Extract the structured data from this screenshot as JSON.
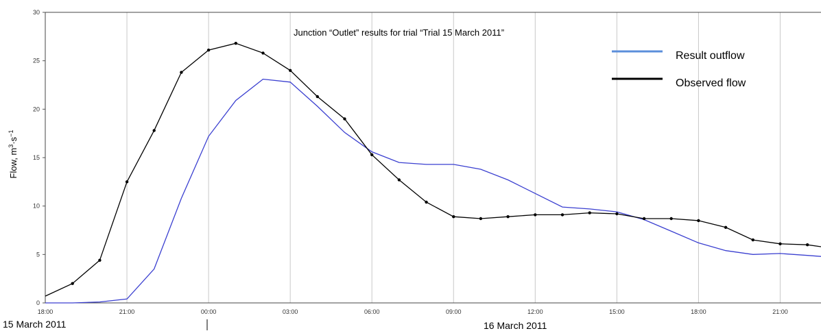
{
  "chart_data": {
    "type": "line",
    "title": "Junction “Outlet” results for trial “Trial 15 March 2011”",
    "ylabel_prefix": "Flow, m",
    "ylabel_sup1": "3",
    "ylabel_mid": "·s",
    "ylabel_sup2": "−1",
    "ylim": [
      0,
      30
    ],
    "yticks": [
      0,
      5,
      10,
      15,
      20,
      25,
      30
    ],
    "xlim": [
      0,
      28.5
    ],
    "x_unit": "hours since 15 March 2011 18:00",
    "xticks": [
      {
        "x": 0,
        "label": "18:00"
      },
      {
        "x": 3,
        "label": "21:00"
      },
      {
        "x": 6,
        "label": "00:00"
      },
      {
        "x": 9,
        "label": "03:00"
      },
      {
        "x": 12,
        "label": "06:00"
      },
      {
        "x": 15,
        "label": "09:00"
      },
      {
        "x": 18,
        "label": "12:00"
      },
      {
        "x": 21,
        "label": "15:00"
      },
      {
        "x": 24,
        "label": "18:00"
      },
      {
        "x": 27,
        "label": "21:00"
      }
    ],
    "date_labels": [
      "15 March 2011",
      "16 March 2011"
    ],
    "grid": true,
    "legend_position": "top-right",
    "series": [
      {
        "name": "Result outflow",
        "color": "#3a3fd0",
        "legend_color": "#5b8fdb",
        "markers": false,
        "points": [
          [
            0,
            0
          ],
          [
            1,
            0
          ],
          [
            2,
            0.1
          ],
          [
            3,
            0.4
          ],
          [
            4,
            3.5
          ],
          [
            5,
            10.8
          ],
          [
            6,
            17.2
          ],
          [
            7,
            20.9
          ],
          [
            8,
            23.1
          ],
          [
            9,
            22.8
          ],
          [
            10,
            20.3
          ],
          [
            11,
            17.6
          ],
          [
            12,
            15.6
          ],
          [
            13,
            14.5
          ],
          [
            14,
            14.3
          ],
          [
            15,
            14.3
          ],
          [
            16,
            13.8
          ],
          [
            17,
            12.7
          ],
          [
            18,
            11.3
          ],
          [
            19,
            9.9
          ],
          [
            20,
            9.7
          ],
          [
            21,
            9.4
          ],
          [
            22,
            8.6
          ],
          [
            23,
            7.4
          ],
          [
            24,
            6.2
          ],
          [
            25,
            5.4
          ],
          [
            26,
            5.0
          ],
          [
            27,
            5.1
          ],
          [
            28,
            4.9
          ],
          [
            28.5,
            4.8
          ]
        ]
      },
      {
        "name": "Observed flow",
        "color": "#000000",
        "legend_color": "#000000",
        "markers": true,
        "points": [
          [
            0,
            0.7
          ],
          [
            1,
            2.0
          ],
          [
            2,
            4.4
          ],
          [
            3,
            12.5
          ],
          [
            4,
            17.8
          ],
          [
            5,
            23.8
          ],
          [
            6,
            26.1
          ],
          [
            7,
            26.8
          ],
          [
            8,
            25.8
          ],
          [
            9,
            24.0
          ],
          [
            10,
            21.3
          ],
          [
            11,
            19.0
          ],
          [
            12,
            15.3
          ],
          [
            13,
            12.7
          ],
          [
            14,
            10.4
          ],
          [
            15,
            8.9
          ],
          [
            16,
            8.7
          ],
          [
            17,
            8.9
          ],
          [
            18,
            9.1
          ],
          [
            19,
            9.1
          ],
          [
            20,
            9.3
          ],
          [
            21,
            9.2
          ],
          [
            22,
            8.7
          ],
          [
            23,
            8.7
          ],
          [
            24,
            8.5
          ],
          [
            25,
            7.8
          ],
          [
            26,
            6.5
          ],
          [
            27,
            6.1
          ],
          [
            28,
            6.0
          ],
          [
            28.5,
            5.8
          ]
        ]
      }
    ]
  }
}
